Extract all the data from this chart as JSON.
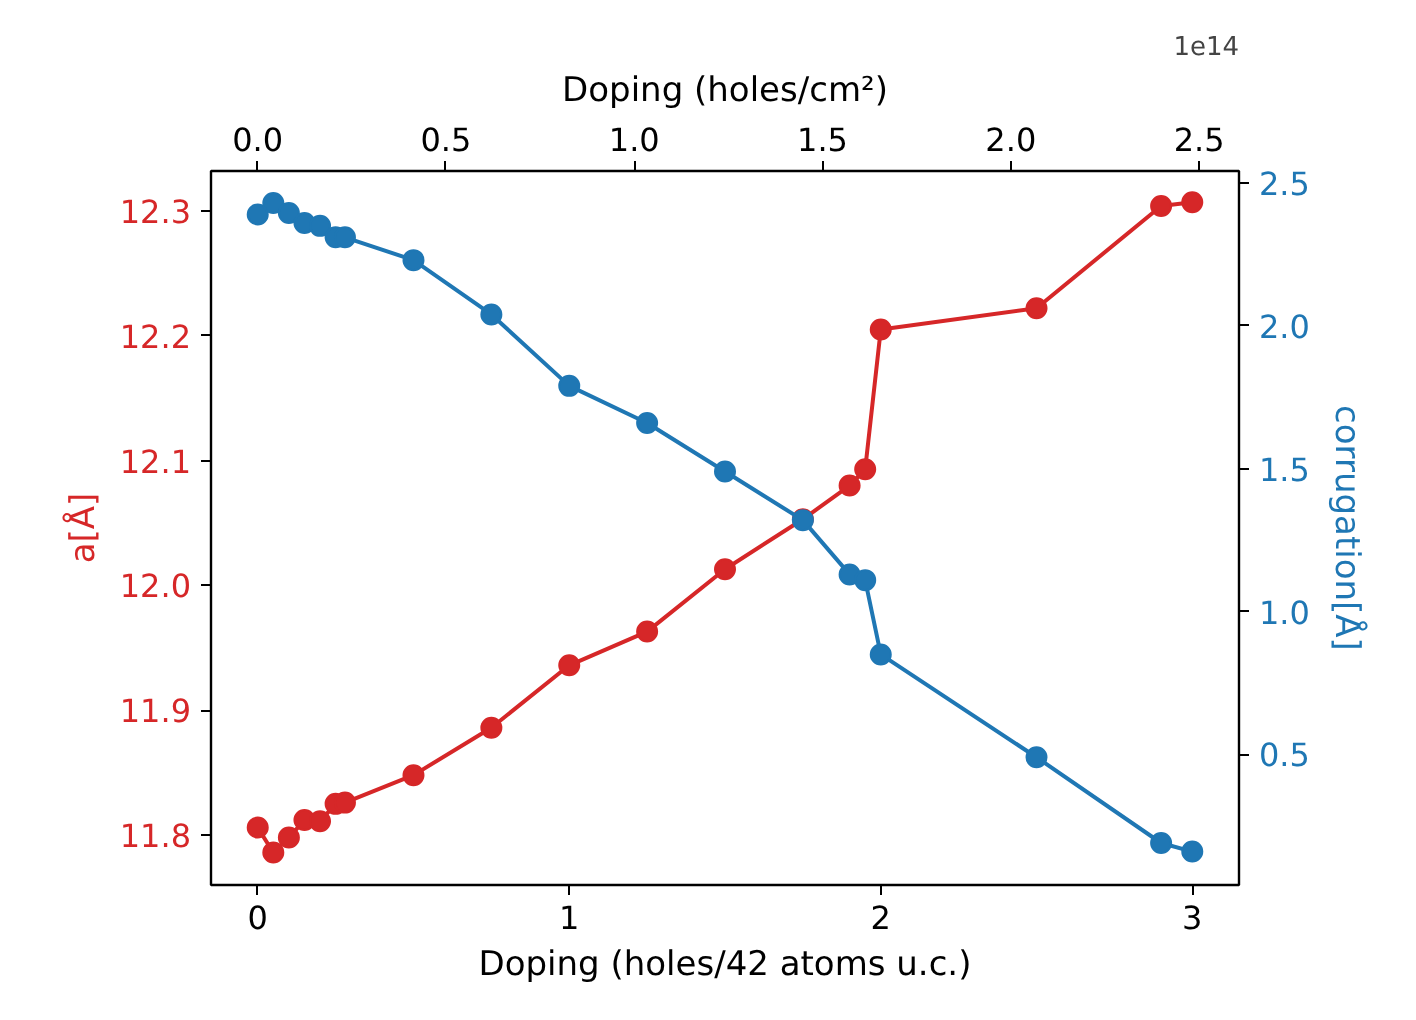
{
  "chart_data": {
    "type": "line",
    "xlabel": "Doping (holes/42 atoms u.c.)",
    "x2label": "Doping (holes/cm²)",
    "ylabel": "a[Å]",
    "y2label": "corrugation[Å]",
    "annotations": [
      "1e14"
    ],
    "x": [
      0,
      0.05,
      0.1,
      0.15,
      0.2,
      0.25,
      0.28,
      0.5,
      0.75,
      1.0,
      1.25,
      1.5,
      1.75,
      1.9,
      1.95,
      2.0,
      2.5,
      2.9,
      3.0
    ],
    "series": [
      {
        "color": "#d62728",
        "values": [
          11.806,
          11.786,
          11.798,
          11.812,
          11.811,
          11.825,
          11.826,
          11.848,
          11.886,
          11.936,
          11.963,
          12.013,
          12.053,
          12.08,
          12.093,
          12.205,
          12.222,
          12.304,
          12.307
        ]
      },
      {
        "color": "#1f77b4",
        "axis": "y2",
        "values": [
          2.39,
          2.43,
          2.395,
          2.36,
          2.35,
          2.31,
          2.31,
          2.23,
          2.04,
          1.79,
          1.66,
          1.49,
          1.32,
          1.13,
          1.11,
          0.85,
          0.49,
          0.19,
          0.16
        ]
      }
    ],
    "xlim": [
      -0.15,
      3.15
    ],
    "xticks": [
      0,
      1,
      2,
      3
    ],
    "x2lim": [
      -0.124,
      2.606
    ],
    "x2ticks": [
      {
        "value": 0,
        "label": "0.0"
      },
      {
        "value": 0.5,
        "label": "0.5"
      },
      {
        "value": 1,
        "label": "1.0"
      },
      {
        "value": 1.5,
        "label": "1.5"
      },
      {
        "value": 2,
        "label": "2.0"
      },
      {
        "value": 2.5,
        "label": "2.5"
      }
    ],
    "ylim": [
      11.76,
      12.332
    ],
    "yticks": [
      11.8,
      11.9,
      {
        "value": 12,
        "label": "12.0"
      },
      12.1,
      12.2,
      12.3
    ],
    "y2lim": [
      0.043,
      2.542
    ],
    "y2ticks": [
      0.5,
      {
        "value": 1,
        "label": "1.0"
      },
      1.5,
      {
        "value": 2,
        "label": "2.0"
      },
      2.5
    ],
    "marker": "circle",
    "line_style": "solid",
    "grid": false
  }
}
